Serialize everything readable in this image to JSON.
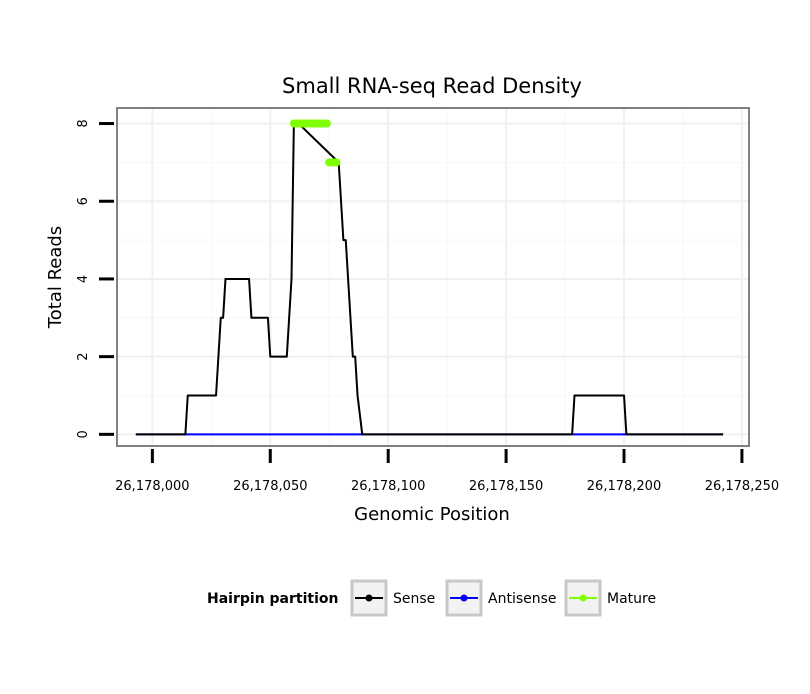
{
  "chart_data": {
    "type": "line",
    "title": "Small RNA-seq Read Density",
    "xlabel": "Genomic Position",
    "ylabel": "Total Reads",
    "xlim": [
      26177985,
      26178253
    ],
    "ylim": [
      -0.3,
      8.4
    ],
    "x_ticks": [
      26178000,
      26178050,
      26178100,
      26178150,
      26178200,
      26178250
    ],
    "x_tick_labels": [
      "26,178,000",
      "26,178,050",
      "26,178,100",
      "26,178,150",
      "26,178,200",
      "26,178,250"
    ],
    "y_ticks": [
      0,
      2,
      4,
      6,
      8
    ],
    "y_tick_labels": [
      "0",
      "2",
      "4",
      "6",
      "8"
    ],
    "grid": true,
    "legend": {
      "title": "Hairpin partition",
      "position": "bottom",
      "entries": [
        "Sense",
        "Antisense",
        "Mature"
      ]
    },
    "series": [
      {
        "name": "Sense",
        "color": "#000000",
        "x": [
          26177993,
          26178014,
          26178015,
          26178027,
          26178028,
          26178029,
          26178030,
          26178031,
          26178041,
          26178042,
          26178044,
          26178045,
          26178049,
          26178050,
          26178057,
          26178058,
          26178059,
          26178060,
          26178062,
          26178079,
          26178080,
          26178081,
          26178082,
          26178083,
          26178084,
          26178085,
          26178086,
          26178087,
          26178089,
          26178178,
          26178179,
          26178200,
          26178201,
          26178242
        ],
        "values": [
          0,
          0,
          1,
          1,
          2,
          3,
          3,
          4,
          4,
          3,
          3,
          3,
          3,
          2,
          2,
          3,
          4,
          8,
          8,
          7,
          6,
          5,
          5,
          4,
          3,
          2,
          2,
          1,
          0,
          0,
          1,
          1,
          0,
          0
        ]
      },
      {
        "name": "Antisense",
        "color": "#0000ff",
        "x": [
          26177993,
          26178242
        ],
        "values": [
          0,
          0
        ]
      },
      {
        "name": "Mature",
        "color": "#7fff00",
        "segments": [
          {
            "x": [
              26178060,
              26178061,
              26178062,
              26178063,
              26178064,
              26178065,
              26178066,
              26178067,
              26178068,
              26178069,
              26178070,
              26178071,
              26178072,
              26178073,
              26178074
            ],
            "values": [
              8,
              8,
              8,
              8,
              8,
              8,
              8,
              8,
              8,
              8,
              8,
              8,
              8,
              8,
              8
            ]
          },
          {
            "x": [
              26178075,
              26178076,
              26178077,
              26178078
            ],
            "values": [
              7,
              7,
              7,
              7
            ]
          }
        ]
      }
    ]
  }
}
